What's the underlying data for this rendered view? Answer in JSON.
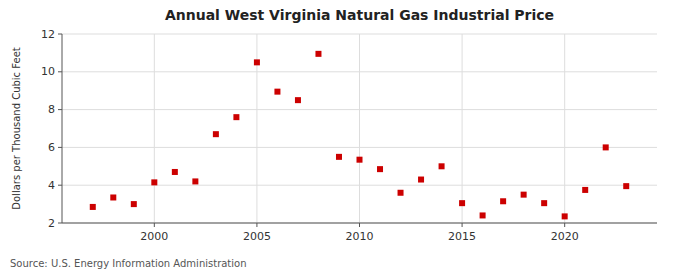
{
  "chart_data": {
    "type": "scatter",
    "title": "Annual West Virginia Natural Gas Industrial Price",
    "y_label": "Dollars per Thousand Cubic Feet",
    "source": "Source: U.S. Energy Information Administration",
    "x": [
      1997,
      1998,
      1999,
      2000,
      2001,
      2002,
      2003,
      2004,
      2005,
      2006,
      2007,
      2008,
      2009,
      2010,
      2011,
      2012,
      2013,
      2014,
      2015,
      2016,
      2017,
      2018,
      2019,
      2020,
      2021,
      2022,
      2023
    ],
    "values": [
      2.85,
      3.35,
      3.0,
      4.15,
      4.7,
      4.2,
      6.7,
      7.6,
      10.5,
      8.95,
      8.5,
      10.95,
      5.5,
      5.35,
      4.85,
      3.6,
      4.3,
      5.0,
      3.05,
      2.4,
      3.15,
      3.5,
      3.05,
      2.35,
      3.75,
      6.0,
      3.95
    ],
    "color": "#cc0000",
    "marker": "square",
    "xlim": [
      1995.5,
      2024.5
    ],
    "xticks": [
      2000,
      2005,
      2010,
      2015,
      2020
    ],
    "ylim": [
      2,
      12
    ],
    "yticks": [
      2,
      4,
      6,
      8,
      10,
      12
    ],
    "grid": true
  }
}
